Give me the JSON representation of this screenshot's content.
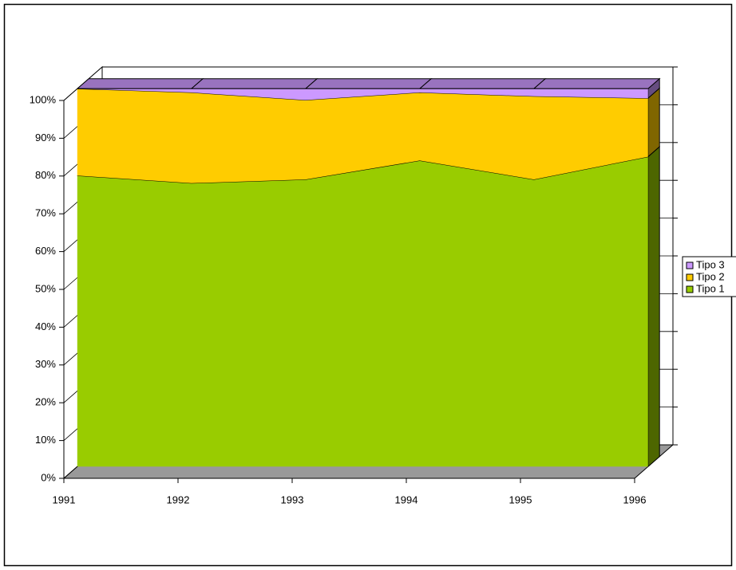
{
  "chart_data": {
    "type": "area",
    "stacked": true,
    "percent": true,
    "categories": [
      "1991",
      "1992",
      "1993",
      "1994",
      "1995",
      "1996"
    ],
    "series": [
      {
        "name": "Tipo 1",
        "color": "#99cc00",
        "values": [
          77,
          75,
          76,
          81,
          76,
          82
        ]
      },
      {
        "name": "Tipo 2",
        "color": "#ffcc00",
        "values": [
          23,
          24,
          21,
          18,
          22,
          15.5
        ]
      },
      {
        "name": "Tipo 3",
        "color": "#cc99ff",
        "values": [
          0,
          1,
          3,
          1,
          2,
          2.5
        ]
      }
    ],
    "ylim": [
      0,
      100
    ],
    "yticks": [
      {
        "value": 0,
        "label": "0%"
      },
      {
        "value": 10,
        "label": "10%"
      },
      {
        "value": 20,
        "label": "20%"
      },
      {
        "value": 30,
        "label": "30%"
      },
      {
        "value": 40,
        "label": "40%"
      },
      {
        "value": 50,
        "label": "50%"
      },
      {
        "value": 60,
        "label": "60%"
      },
      {
        "value": 70,
        "label": "70%"
      },
      {
        "value": 80,
        "label": "80%"
      },
      {
        "value": 90,
        "label": "90%"
      },
      {
        "value": 100,
        "label": "100%"
      }
    ],
    "grid": true,
    "legend": "right"
  }
}
